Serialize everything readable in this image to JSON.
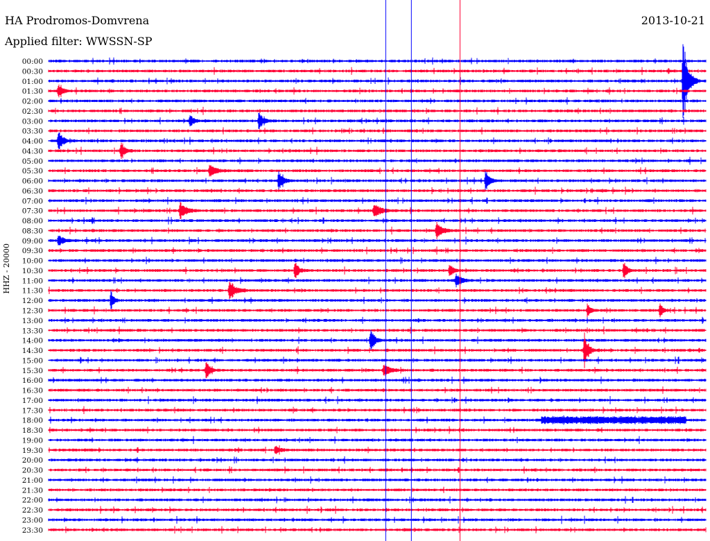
{
  "header": {
    "station": "HA Prodromos-Domvrena",
    "filter": "Applied filter: WWSSN-SP",
    "date": "2013-10-21"
  },
  "chart_data": {
    "type": "helicorder",
    "ylabel": "HHZ - 20000",
    "row_labels": [
      "00:00",
      "00:30",
      "01:00",
      "01:30",
      "02:00",
      "02:30",
      "03:00",
      "03:30",
      "04:00",
      "04:30",
      "05:00",
      "05:30",
      "06:00",
      "06:30",
      "07:00",
      "07:30",
      "08:00",
      "08:30",
      "09:00",
      "09:30",
      "10:00",
      "10:30",
      "11:00",
      "11:30",
      "12:00",
      "12:30",
      "13:00",
      "13:30",
      "14:00",
      "14:30",
      "15:00",
      "15:30",
      "16:00",
      "16:30",
      "17:00",
      "17:30",
      "18:00",
      "18:30",
      "19:00",
      "19:30",
      "20:00",
      "20:30",
      "21:00",
      "21:30",
      "22:00",
      "22:30",
      "23:00",
      "23:30"
    ],
    "row_colors": [
      "#0000ff",
      "#ff0033"
    ],
    "events": [
      {
        "row": 2,
        "x": 0.965,
        "amp": 75,
        "w": 0.006
      },
      {
        "row": 3,
        "x": 0.015,
        "amp": 10,
        "w": 0.006
      },
      {
        "row": 6,
        "x": 0.215,
        "amp": 10,
        "w": 0.005
      },
      {
        "row": 6,
        "x": 0.32,
        "amp": 12,
        "w": 0.006
      },
      {
        "row": 8,
        "x": 0.015,
        "amp": 16,
        "w": 0.006
      },
      {
        "row": 9,
        "x": 0.11,
        "amp": 12,
        "w": 0.006
      },
      {
        "row": 11,
        "x": 0.245,
        "amp": 10,
        "w": 0.008
      },
      {
        "row": 12,
        "x": 0.35,
        "amp": 14,
        "w": 0.006
      },
      {
        "row": 12,
        "x": 0.665,
        "amp": 14,
        "w": 0.006
      },
      {
        "row": 15,
        "x": 0.2,
        "amp": 12,
        "w": 0.008
      },
      {
        "row": 15,
        "x": 0.495,
        "amp": 10,
        "w": 0.01
      },
      {
        "row": 17,
        "x": 0.59,
        "amp": 12,
        "w": 0.008
      },
      {
        "row": 18,
        "x": 0.015,
        "amp": 7,
        "w": 0.008
      },
      {
        "row": 21,
        "x": 0.375,
        "amp": 18,
        "w": 0.004
      },
      {
        "row": 21,
        "x": 0.61,
        "amp": 10,
        "w": 0.005
      },
      {
        "row": 21,
        "x": 0.875,
        "amp": 14,
        "w": 0.005
      },
      {
        "row": 22,
        "x": 0.62,
        "amp": 12,
        "w": 0.006
      },
      {
        "row": 23,
        "x": 0.275,
        "amp": 14,
        "w": 0.008
      },
      {
        "row": 24,
        "x": 0.095,
        "amp": 14,
        "w": 0.004
      },
      {
        "row": 25,
        "x": 0.82,
        "amp": 12,
        "w": 0.004
      },
      {
        "row": 25,
        "x": 0.93,
        "amp": 14,
        "w": 0.004
      },
      {
        "row": 28,
        "x": 0.49,
        "amp": 18,
        "w": 0.005
      },
      {
        "row": 29,
        "x": 0.815,
        "amp": 26,
        "w": 0.005
      },
      {
        "row": 31,
        "x": 0.24,
        "amp": 16,
        "w": 0.005
      },
      {
        "row": 31,
        "x": 0.51,
        "amp": 10,
        "w": 0.008
      },
      {
        "row": 39,
        "x": 0.345,
        "amp": 7,
        "w": 0.006
      }
    ],
    "bursts": [
      {
        "row": 36,
        "x0": 0.75,
        "x1": 0.97,
        "amp": 4
      }
    ],
    "markers": [
      {
        "x": 0.513,
        "color": "#0000ff"
      },
      {
        "x": 0.552,
        "color": "#0000ff"
      },
      {
        "x": 0.626,
        "color": "#ff0033"
      }
    ]
  }
}
